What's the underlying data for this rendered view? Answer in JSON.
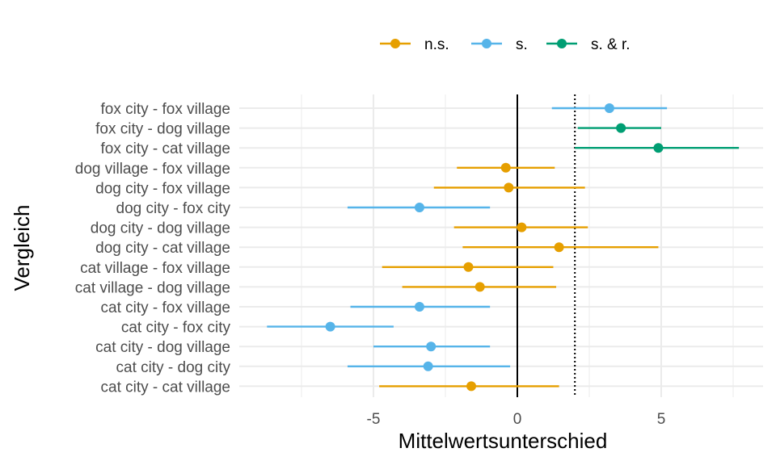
{
  "chart_data": {
    "type": "forest",
    "xlabel": "Mittelwertsunterschied",
    "ylabel": "Vergleich",
    "xlim": [
      -9.5,
      8.5
    ],
    "xticks": [
      -5,
      0,
      5
    ],
    "xtick_labels": [
      "-5",
      "0",
      "5"
    ],
    "minor_xticks": [
      -7.5,
      -2.5,
      2.5,
      7.5
    ],
    "reference_lines": [
      {
        "x": 0,
        "style": "solid"
      },
      {
        "x": 2,
        "style": "dotted"
      }
    ],
    "grid": true,
    "legend": {
      "position": "top",
      "entries": [
        {
          "key": "ns",
          "label": "n.s.",
          "color": "#E69F00"
        },
        {
          "key": "s",
          "label": "s.",
          "color": "#56B4E9"
        },
        {
          "key": "sr",
          "label": "s. & r.",
          "color": "#009E73"
        }
      ]
    },
    "categories": [
      "fox city - fox village",
      "fox city - dog village",
      "fox city - cat village",
      "dog village - fox village",
      "dog city - fox village",
      "dog city - fox city",
      "dog city - dog village",
      "dog city - cat village",
      "cat village - fox village",
      "cat village - dog village",
      "cat city - fox village",
      "cat city - fox city",
      "cat city - dog village",
      "cat city - dog city",
      "cat city - cat village"
    ],
    "estimates": [
      3.2,
      3.6,
      4.9,
      -0.4,
      -0.3,
      -3.4,
      0.15,
      1.45,
      -1.7,
      -1.3,
      -3.4,
      -6.5,
      -3.0,
      -3.1,
      -1.6
    ],
    "lower": [
      1.2,
      2.1,
      2.0,
      -2.1,
      -2.9,
      -5.9,
      -2.2,
      -1.9,
      -4.7,
      -4.0,
      -5.8,
      -8.7,
      -5.0,
      -5.9,
      -4.8
    ],
    "upper": [
      5.2,
      5.0,
      7.7,
      1.3,
      2.35,
      -0.95,
      2.45,
      4.9,
      1.25,
      1.35,
      -0.95,
      -4.3,
      -0.95,
      -0.25,
      1.45
    ],
    "groups": [
      "s",
      "sr",
      "sr",
      "ns",
      "ns",
      "s",
      "ns",
      "ns",
      "ns",
      "ns",
      "s",
      "s",
      "s",
      "s",
      "ns"
    ]
  }
}
